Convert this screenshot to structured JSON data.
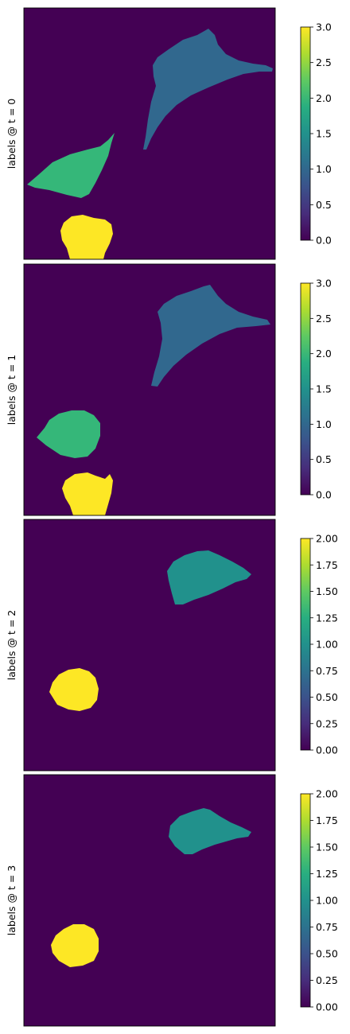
{
  "figure": {
    "colormap": "viridis",
    "colors": {
      "background": "#440154",
      "yellow": "#fde725",
      "green": "#35b779",
      "teal": "#21918c",
      "blue": "#31688e",
      "frame": "#000000"
    }
  },
  "chart_data": [
    {
      "type": "heatmap",
      "title": "",
      "ylabel": "labels @ t = 0",
      "xlabel": "",
      "colorbar": {
        "min": 0,
        "max": 3,
        "ticks": [
          "0.0",
          "0.5",
          "1.0",
          "1.5",
          "2.0",
          "2.5",
          "3.0"
        ]
      },
      "regions": [
        {
          "label": 1,
          "color": "#31688e",
          "shape": "triangular cell, upper right"
        },
        {
          "label": 2,
          "color": "#35b779",
          "shape": "leaf-shaped cell, middle left"
        },
        {
          "label": 3,
          "color": "#fde725",
          "shape": "round cell, bottom left"
        }
      ]
    },
    {
      "type": "heatmap",
      "title": "",
      "ylabel": "labels @ t = 1",
      "xlabel": "",
      "colorbar": {
        "min": 0,
        "max": 3,
        "ticks": [
          "0.0",
          "0.5",
          "1.0",
          "1.5",
          "2.0",
          "2.5",
          "3.0"
        ]
      },
      "regions": [
        {
          "label": 1,
          "color": "#31688e",
          "shape": "triangular cell, upper right"
        },
        {
          "label": 2,
          "color": "#35b779",
          "shape": "teardrop cell, middle left"
        },
        {
          "label": 3,
          "color": "#fde725",
          "shape": "round cell, bottom left"
        }
      ]
    },
    {
      "type": "heatmap",
      "title": "",
      "ylabel": "labels @ t = 2",
      "xlabel": "",
      "colorbar": {
        "min": 0,
        "max": 2,
        "ticks": [
          "0.00",
          "0.25",
          "0.50",
          "0.75",
          "1.00",
          "1.25",
          "1.50",
          "1.75",
          "2.00"
        ]
      },
      "regions": [
        {
          "label": 1,
          "color": "#21918c",
          "shape": "half-moon cell, upper right"
        },
        {
          "label": 2,
          "color": "#fde725",
          "shape": "round cell, lower left"
        }
      ]
    },
    {
      "type": "heatmap",
      "title": "",
      "ylabel": "labels @ t = 3",
      "xlabel": "",
      "colorbar": {
        "min": 0,
        "max": 2,
        "ticks": [
          "0.00",
          "0.25",
          "0.50",
          "0.75",
          "1.00",
          "1.25",
          "1.50",
          "1.75",
          "2.00"
        ]
      },
      "regions": [
        {
          "label": 1,
          "color": "#21918c",
          "shape": "teardrop cell, upper right"
        },
        {
          "label": 2,
          "color": "#fde725",
          "shape": "round cell, lower left"
        }
      ]
    }
  ]
}
